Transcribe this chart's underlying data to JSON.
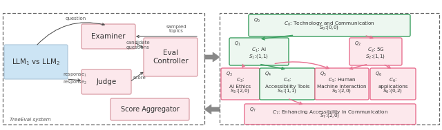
{
  "bg_color": "#ffffff",
  "green_color": "#3a9e5f",
  "pink_color": "#e87090",
  "dark_color": "#444444",
  "llm_bg": "#cce4f4",
  "pink_bg": "#fce8ec",
  "green_bg": "#edf7f0",
  "nodes": {
    "n0": {
      "q": "Q_0",
      "c": "C_0: Technology and Communication",
      "s": "S_0:(0,0)",
      "color": "green"
    },
    "n1": {
      "q": "Q_1",
      "c": "C_1: AI",
      "s": "S_1:(1,1)",
      "color": "green"
    },
    "n2": {
      "q": "Q_2",
      "c": "C_2: 5G",
      "s": "S_2:(1,1)",
      "color": "pink"
    },
    "n3": {
      "q": "Q_3",
      "c": "C_3:\nAI Ethics",
      "s": "S_3:(2,0)",
      "color": "pink"
    },
    "n4": {
      "q": "Q_4",
      "c": "C_4:\nAccessibility Tools",
      "s": "S_4:(1,1)",
      "color": "green"
    },
    "n5": {
      "q": "Q_5",
      "c": "C_5: Human\nMachine Interaction",
      "s": "S_5:(2,0)",
      "color": "pink"
    },
    "n6": {
      "q": "Q_6",
      "c": "C_6:\napplications",
      "s": "S_6:(0,2)",
      "color": "pink"
    },
    "n7": {
      "q": "Q_7",
      "c": "C_7: Enhancing Accessibility in Communication",
      "s": "S_7:(2,0)",
      "color": "pink"
    }
  }
}
